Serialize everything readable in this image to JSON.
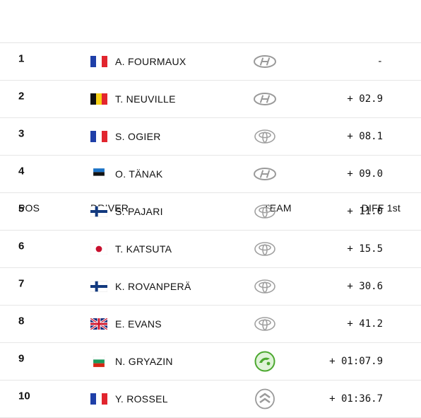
{
  "header": {
    "pos": "POS",
    "driver": "DRIVER",
    "team": "TEAM",
    "diff": "DIFF 1st"
  },
  "rows": [
    {
      "pos": "1",
      "flag": "france-flag-icon",
      "driver": "A. FOURMAUX",
      "team": "hyundai-logo-icon",
      "diff": "-"
    },
    {
      "pos": "2",
      "flag": "belgium-flag-icon",
      "driver": "T. NEUVILLE",
      "team": "hyundai-logo-icon",
      "diff": "+ 02.9"
    },
    {
      "pos": "3",
      "flag": "france-flag-icon",
      "driver": "S. OGIER",
      "team": "toyota-logo-icon",
      "diff": "+ 08.1"
    },
    {
      "pos": "4",
      "flag": "estonia-flag-icon",
      "driver": "O. TÄNAK",
      "team": "hyundai-logo-icon",
      "diff": "+ 09.0"
    },
    {
      "pos": "5",
      "flag": "finland-flag-icon",
      "driver": "S. PAJARI",
      "team": "toyota-logo-icon",
      "diff": "+ 11.0"
    },
    {
      "pos": "6",
      "flag": "japan-flag-icon",
      "driver": "T. KATSUTA",
      "team": "toyota-logo-icon",
      "diff": "+ 15.5"
    },
    {
      "pos": "7",
      "flag": "finland-flag-icon",
      "driver": "K. ROVANPERÄ",
      "team": "toyota-logo-icon",
      "diff": "+ 30.6"
    },
    {
      "pos": "8",
      "flag": "uk-flag-icon",
      "driver": "E. EVANS",
      "team": "toyota-logo-icon",
      "diff": "+ 41.2"
    },
    {
      "pos": "9",
      "flag": "bulgaria-flag-icon",
      "driver": "N. GRYAZIN",
      "team": "skoda-logo-icon",
      "diff": "+ 01:07.9"
    },
    {
      "pos": "10",
      "flag": "france-flag-icon",
      "driver": "Y. ROSSEL",
      "team": "citroen-logo-icon",
      "diff": "+ 01:36.7"
    }
  ],
  "colors": {
    "divider": "#e6e6e6",
    "skoda_green": "#4ba82e",
    "logo_gray": "#9a9a9a"
  }
}
